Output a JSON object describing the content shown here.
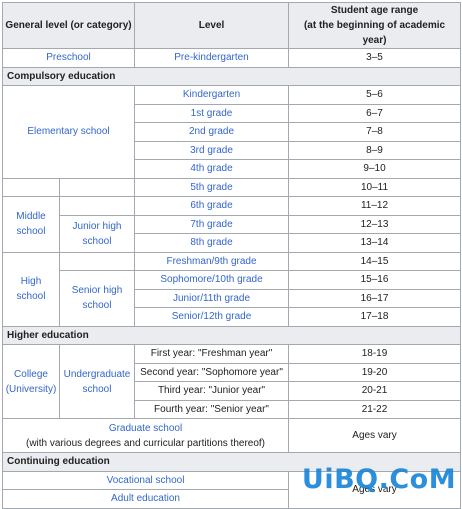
{
  "table": {
    "headers": {
      "category": "General level (or category)",
      "level": "Level",
      "age_line1": "Student age range",
      "age_line2": "(at the beginning of academic year)"
    },
    "preschool": {
      "category": "Preschool",
      "level": "Pre-kindergarten",
      "ages": "3–5"
    },
    "compulsory": {
      "title": "Compulsory education",
      "elementary": "Elementary school",
      "middle": "Middle school",
      "junior_high": "Junior high school",
      "high": "High school",
      "senior_high": "Senior high school",
      "levels": [
        {
          "level": "Kindergarten",
          "ages": "5–6"
        },
        {
          "level": "1st grade",
          "ages": "6–7"
        },
        {
          "level": "2nd grade",
          "ages": "7–8"
        },
        {
          "level": "3rd grade",
          "ages": "8–9"
        },
        {
          "level": "4th grade",
          "ages": "9–10"
        },
        {
          "level": "5th grade",
          "ages": "10–11"
        },
        {
          "level": "6th grade",
          "ages": "11–12"
        },
        {
          "level": "7th grade",
          "ages": "12–13"
        },
        {
          "level": "8th grade",
          "ages": "13–14"
        },
        {
          "level": "Freshman/9th grade",
          "ages": "14–15"
        },
        {
          "level": "Sophomore/10th grade",
          "ages": "15–16"
        },
        {
          "level": "Junior/11th grade",
          "ages": "16–17"
        },
        {
          "level": "Senior/12th grade",
          "ages": "17–18"
        }
      ]
    },
    "higher": {
      "title": "Higher education",
      "college": "College (University)",
      "undergraduate": "Undergraduate school",
      "levels": [
        {
          "level": "First year: \"Freshman year\"",
          "ages": "18-19"
        },
        {
          "level": "Second year: \"Sophomore year\"",
          "ages": "19-20"
        },
        {
          "level": "Third year: \"Junior year\"",
          "ages": "20-21"
        },
        {
          "level": "Fourth year: \"Senior year\"",
          "ages": "21-22"
        }
      ],
      "graduate_line1": "Graduate school",
      "graduate_line2": "(with various degrees and curricular partitions thereof)",
      "graduate_ages": "Ages vary"
    },
    "continuing": {
      "title": "Continuing education",
      "vocational": "Vocational school",
      "adult": "Adult education",
      "ages": "Ages vary"
    }
  },
  "watermark": "UiBQ.CoM"
}
